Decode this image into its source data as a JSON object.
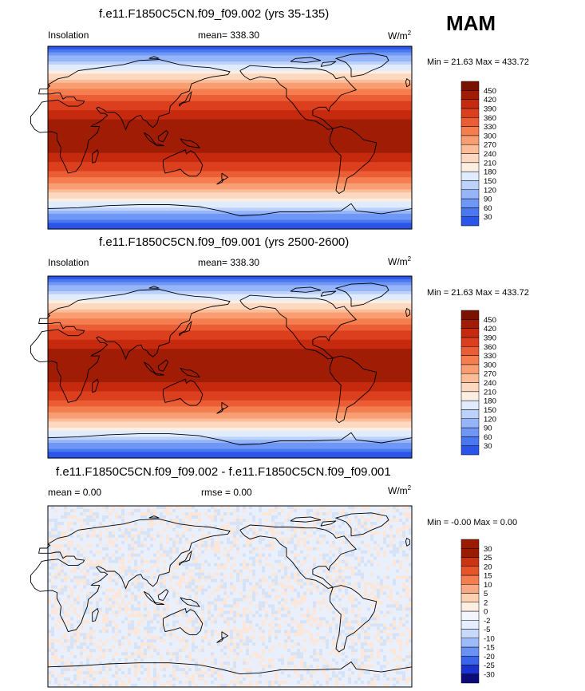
{
  "season": "MAM",
  "colors": {
    "sequential": [
      "#0b0b7a",
      "#1010a8",
      "#1c32cd",
      "#2a55e8",
      "#4a78f0",
      "#6f97f5",
      "#96b5f8",
      "#bcd1fb",
      "#e0ebfd",
      "#fdeee2",
      "#fcd8c0",
      "#fbbd98",
      "#f99e72",
      "#f47e50",
      "#eb5d34",
      "#dc3f1e",
      "#c62a0e",
      "#a01c04",
      "#7a1200"
    ],
    "diverging": [
      "#0b0b7a",
      "#1c32cd",
      "#3b64ec",
      "#6a92f4",
      "#9dbbf8",
      "#c7dafb",
      "#e6eefd",
      "#fdeee2",
      "#fcd0b0",
      "#f9a984",
      "#f47e50",
      "#e65529",
      "#cc340f",
      "#9a1a02"
    ],
    "coast": "#000000"
  },
  "panels": [
    {
      "title": "f.e11.F1850C5CN.f09_f09.002 (yrs 35-135)",
      "left_label": "Insolation",
      "center_label": "mean= 338.30",
      "units": "W/m",
      "units_sup": "2",
      "minmax": "Min =  21.63 Max = 433.72"
    },
    {
      "title": "f.e11.F1850C5CN.f09_f09.001 (yrs 2500-2600)",
      "left_label": "Insolation",
      "center_label": "mean= 338.30",
      "units": "W/m",
      "units_sup": "2",
      "minmax": "Min =  21.63 Max = 433.72"
    },
    {
      "title": "f.e11.F1850C5CN.f09_f09.002 - f.e11.F1850C5CN.f09_f09.001",
      "left_label": "mean =   0.00",
      "center_label": "rmse =   0.00",
      "units": "W/m",
      "units_sup": "2",
      "minmax": "Min =  -0.00 Max =   0.00"
    }
  ],
  "chart_data": [
    {
      "type": "heatmap",
      "title": "f.e11.F1850C5CN.f09_f09.002 (yrs 35-135)",
      "variable": "Insolation",
      "units": "W/m2",
      "mean": 338.3,
      "min": 21.63,
      "max": 433.72,
      "colorbar_levels": [
        30,
        60,
        90,
        120,
        150,
        180,
        210,
        240,
        270,
        300,
        330,
        360,
        390,
        420,
        450
      ]
    },
    {
      "type": "heatmap",
      "title": "f.e11.F1850C5CN.f09_f09.001 (yrs 2500-2600)",
      "variable": "Insolation",
      "units": "W/m2",
      "mean": 338.3,
      "min": 21.63,
      "max": 433.72,
      "colorbar_levels": [
        30,
        60,
        90,
        120,
        150,
        180,
        210,
        240,
        270,
        300,
        330,
        360,
        390,
        420,
        450
      ]
    },
    {
      "type": "heatmap",
      "title": "f.e11.F1850C5CN.f09_f09.002 - f.e11.F1850C5CN.f09_f09.001",
      "variable": "difference",
      "units": "W/m2",
      "mean": 0.0,
      "rmse": 0.0,
      "min": -0.0,
      "max": 0.0,
      "colorbar_levels": [
        -30,
        -25,
        -20,
        -15,
        -10,
        -5,
        -2,
        0,
        2,
        5,
        10,
        15,
        20,
        25,
        30
      ]
    }
  ]
}
